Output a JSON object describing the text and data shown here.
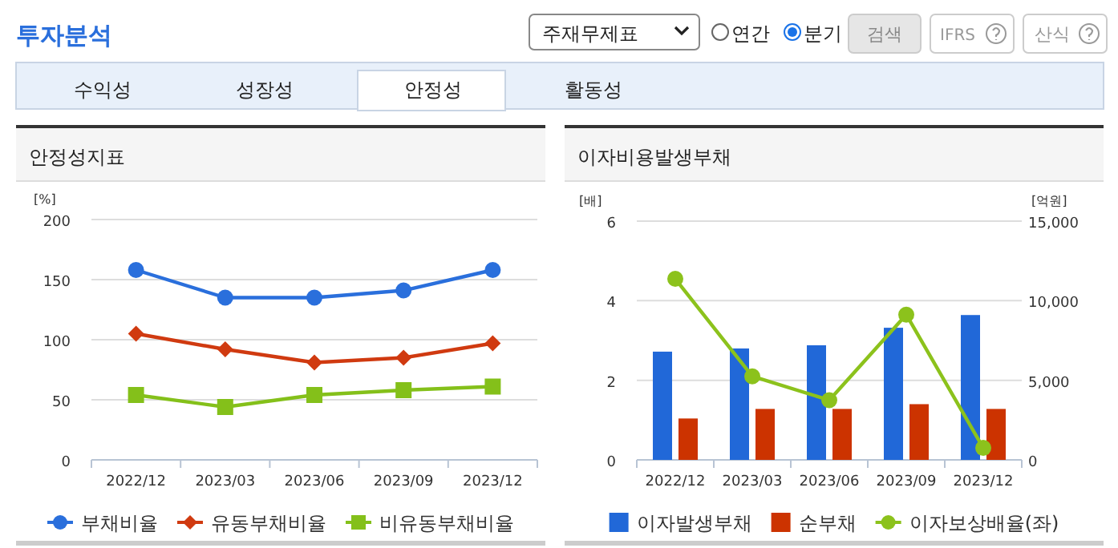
{
  "chart_data": [
    {
      "type": "other",
      "title": "투자분석",
      "annotations": [
        "주재무제표",
        "연간",
        "분기",
        "검색",
        "IFRS",
        "산식",
        "수익성",
        "성장성",
        "안정성",
        "활동성"
      ]
    },
    {
      "type": "line",
      "title": "안정성지표",
      "ylabel": "[%]",
      "categories": [
        "2022/12",
        "2023/03",
        "2023/06",
        "2023/09",
        "2023/12"
      ],
      "ylim": [
        0,
        200
      ],
      "yticks": [
        0,
        50,
        100,
        150,
        200
      ],
      "grid": "y",
      "legend": "bottom",
      "series": [
        {
          "name": "부채비율",
          "color": "#2a6fdc",
          "marker": "circle",
          "values": [
            158,
            135,
            135,
            141,
            158
          ]
        },
        {
          "name": "유동부채비율",
          "color": "#d03a10",
          "marker": "diamond",
          "values": [
            105,
            92,
            81,
            85,
            97
          ]
        },
        {
          "name": "비유동부채비율",
          "color": "#84c01a",
          "marker": "square",
          "values": [
            54,
            44,
            54,
            58,
            61
          ]
        }
      ]
    },
    {
      "type": "bar",
      "title": "이자비용발생부채",
      "ylabel": "[배]",
      "y2label": "[억원]",
      "categories": [
        "2022/12",
        "2023/03",
        "2023/06",
        "2023/09",
        "2023/12"
      ],
      "ylim": [
        0,
        6
      ],
      "yticks": [
        0,
        2,
        4,
        6
      ],
      "y2lim": [
        0,
        15000
      ],
      "y2ticks": [
        {
          "value": 0,
          "label": "0"
        },
        {
          "value": 5000,
          "label": "5,000"
        },
        {
          "value": 10000,
          "label": "10,000"
        },
        {
          "value": 15000,
          "label": "15,000"
        }
      ],
      "grid": "y",
      "legend": "bottom",
      "series": [
        {
          "name": "이자발생부채",
          "color": "#2168d8",
          "axis": "y2",
          "values": [
            6800,
            7000,
            7200,
            8300,
            9100
          ]
        },
        {
          "name": "순부채",
          "color": "#cc3300",
          "axis": "y2",
          "values": [
            2600,
            3200,
            3200,
            3500,
            3200
          ]
        },
        {
          "name": "이자보상배율(좌)",
          "type": "line",
          "color": "#8cc21c",
          "marker": "circle",
          "axis": "y",
          "values": [
            4.55,
            2.1,
            1.5,
            3.65,
            0.3
          ]
        }
      ]
    }
  ]
}
